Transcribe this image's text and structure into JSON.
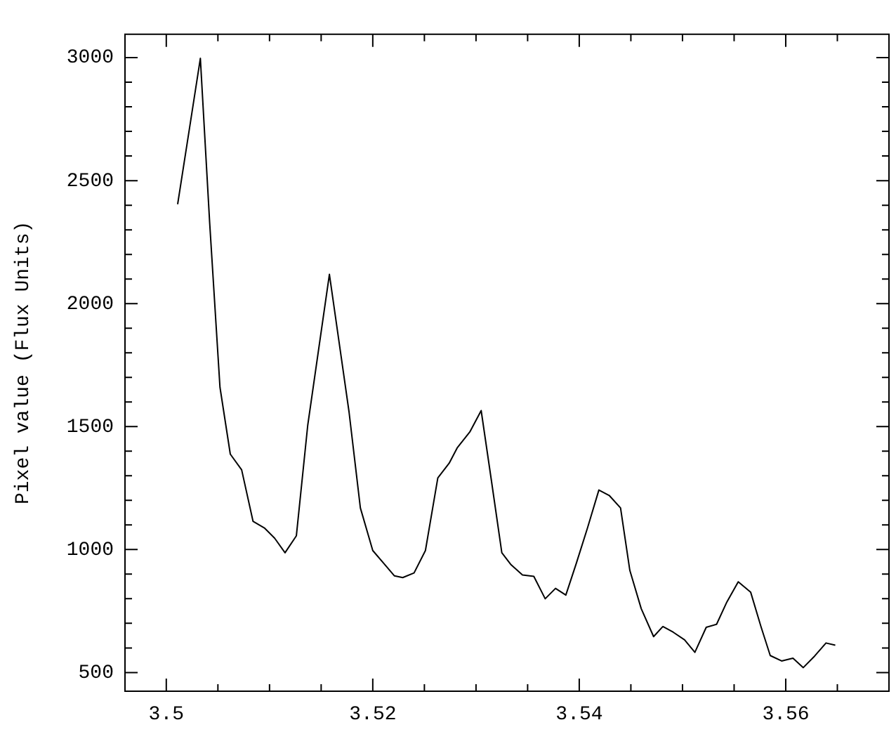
{
  "chart_data": {
    "type": "line",
    "ylabel": "Pixel value (Flux Units)",
    "series": [
      {
        "color": "#000000",
        "x": [
          3.5011,
          3.5022,
          3.5033,
          3.5042,
          3.5052,
          3.5062,
          3.5073,
          3.5084,
          3.5095,
          3.5105,
          3.5115,
          3.5126,
          3.5137,
          3.5158,
          3.5177,
          3.5188,
          3.52,
          3.5211,
          3.5221,
          3.5229,
          3.524,
          3.5251,
          3.5263,
          3.5274,
          3.5282,
          3.5294,
          3.5305,
          3.5315,
          3.5325,
          3.5334,
          3.5345,
          3.5356,
          3.5367,
          3.5377,
          3.5387,
          3.5397,
          3.5408,
          3.5419,
          3.5429,
          3.544,
          3.5449,
          3.546,
          3.5472,
          3.5481,
          3.5491,
          3.5502,
          3.5512,
          3.5523,
          3.5533,
          3.5543,
          3.5554,
          3.5566,
          3.5576,
          3.5585,
          3.5596,
          3.5607,
          3.5617,
          3.5628,
          3.5639,
          3.5648
        ],
        "values": [
          2404,
          2700,
          2997,
          2330,
          1660,
          1388,
          1324,
          1115,
          1088,
          1046,
          987,
          1056,
          1505,
          2119,
          1560,
          1169,
          996,
          942,
          893,
          886,
          905,
          996,
          1291,
          1351,
          1415,
          1478,
          1565,
          1278,
          987,
          938,
          897,
          891,
          800,
          842,
          815,
          942,
          1088,
          1242,
          1220,
          1169,
          915,
          760,
          646,
          687,
          664,
          633,
          582,
          684,
          696,
          787,
          869,
          827,
          687,
          569,
          547,
          558,
          520,
          567,
          620,
          611
        ]
      }
    ],
    "xlim": [
      3.496,
      3.57
    ],
    "ylim": [
      424,
      3095
    ],
    "xticks": [
      3.5,
      {
        "value": 3.505,
        "label": null
      },
      {
        "value": 3.51,
        "label": null
      },
      {
        "value": 3.515,
        "label": null
      },
      3.52,
      {
        "value": 3.525,
        "label": null
      },
      {
        "value": 3.53,
        "label": null
      },
      {
        "value": 3.535,
        "label": null
      },
      3.54,
      {
        "value": 3.545,
        "label": null
      },
      {
        "value": 3.55,
        "label": null
      },
      {
        "value": 3.555,
        "label": null
      },
      3.56,
      {
        "value": 3.565,
        "label": null
      }
    ],
    "yticks": [
      500,
      {
        "value": 600,
        "label": null
      },
      {
        "value": 700,
        "label": null
      },
      {
        "value": 800,
        "label": null
      },
      {
        "value": 900,
        "label": null
      },
      1000,
      {
        "value": 1100,
        "label": null
      },
      {
        "value": 1200,
        "label": null
      },
      {
        "value": 1300,
        "label": null
      },
      {
        "value": 1400,
        "label": null
      },
      1500,
      {
        "value": 1600,
        "label": null
      },
      {
        "value": 1700,
        "label": null
      },
      {
        "value": 1800,
        "label": null
      },
      {
        "value": 1900,
        "label": null
      },
      2000,
      {
        "value": 2100,
        "label": null
      },
      {
        "value": 2200,
        "label": null
      },
      {
        "value": 2300,
        "label": null
      },
      {
        "value": 2400,
        "label": null
      },
      2500,
      {
        "value": 2600,
        "label": null
      },
      {
        "value": 2700,
        "label": null
      },
      {
        "value": 2800,
        "label": null
      },
      {
        "value": 2900,
        "label": null
      },
      3000
    ],
    "grid": false,
    "legend": false,
    "marker": "none",
    "line_style": "solid"
  }
}
